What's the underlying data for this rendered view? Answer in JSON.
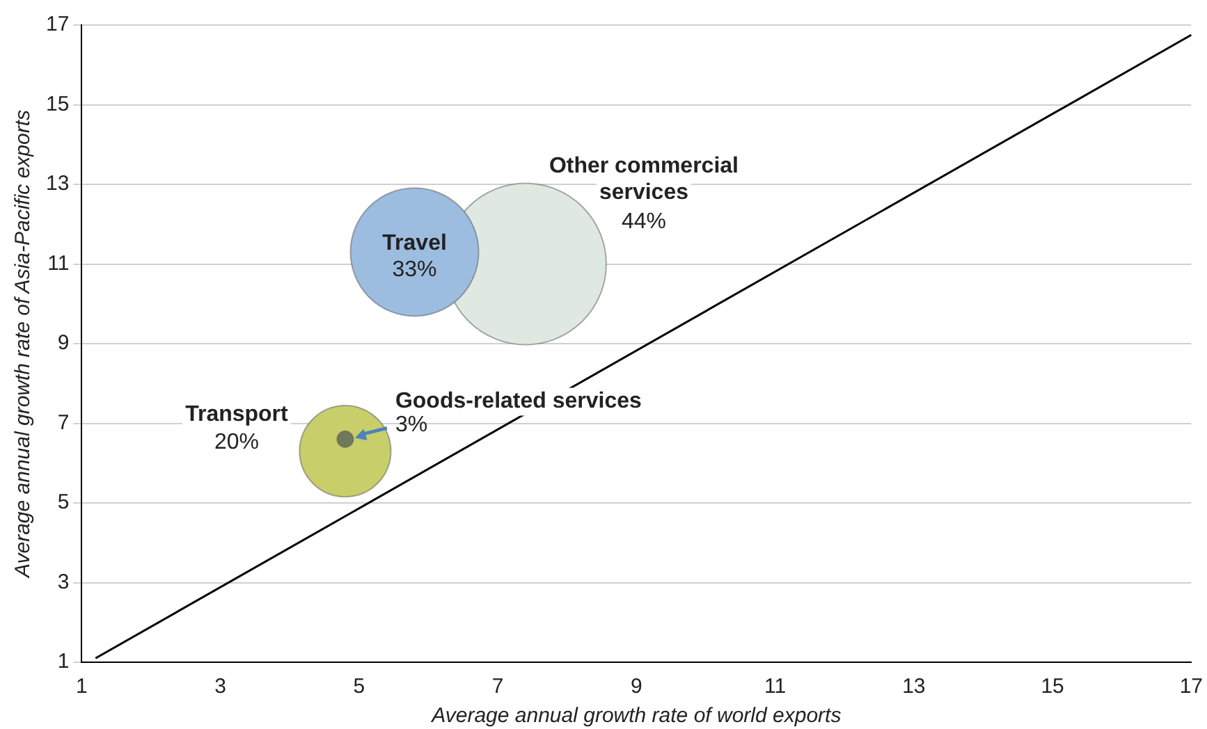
{
  "chart_data": {
    "type": "bubble",
    "xlabel": "Average annual growth rate of world exports",
    "ylabel": "Average annual growth rate of Asia-Pacific exports",
    "xlim": [
      1,
      17
    ],
    "xticks": [
      1,
      3,
      5,
      7,
      9,
      11,
      13,
      15,
      17
    ],
    "ylim": [
      1,
      17
    ],
    "yticks": [
      1,
      3,
      5,
      7,
      9,
      11,
      13,
      15,
      17
    ],
    "grid": "y",
    "legend": false,
    "series": [
      {
        "name": "Other commercial services",
        "color": "#dfe9e2",
        "x": [
          7.4
        ],
        "values": [
          11.0
        ],
        "sizes": [
          1
        ]
      },
      {
        "name": "Travel",
        "color": "#9dbde0",
        "x": [
          5.8
        ],
        "values": [
          11.3
        ],
        "sizes": [
          0.63
        ]
      },
      {
        "name": "Transport",
        "color": "#c8cf6a",
        "x": [
          4.8
        ],
        "values": [
          6.3
        ],
        "sizes": [
          0.32
        ]
      },
      {
        "name": "Goods-related services",
        "color": "#6f7a5a",
        "x": [
          4.8
        ],
        "values": [
          6.6
        ],
        "sizes": [
          0.01
        ]
      },
      {
        "type": "line",
        "color": "#000000",
        "x": [
          1.2,
          17
        ],
        "values": [
          1.1,
          16.75
        ]
      }
    ],
    "annotations": [
      "44%",
      "33%",
      "20%",
      {
        "text": "3%",
        "x": 4.8,
        "y": 6.6
      }
    ]
  }
}
